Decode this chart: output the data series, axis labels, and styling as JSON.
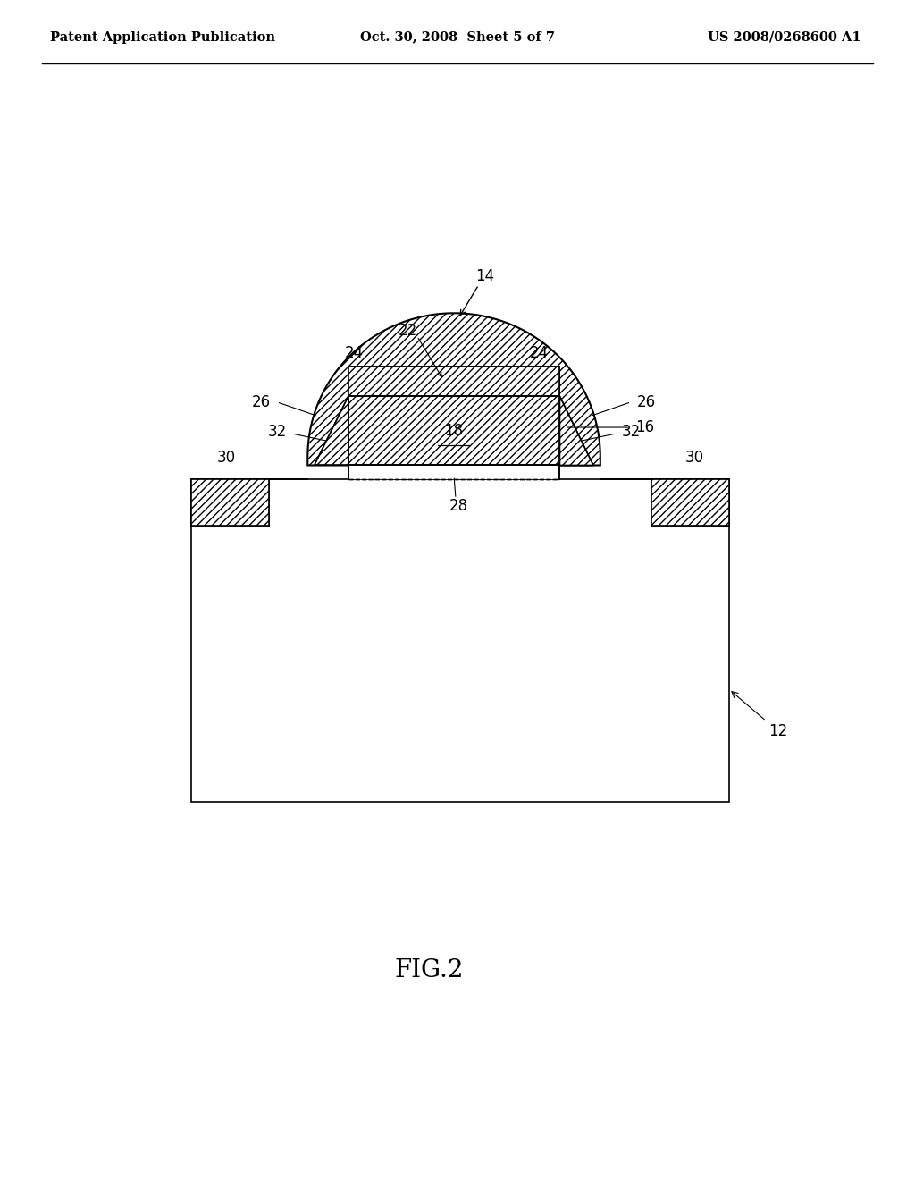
{
  "bg_color": "#ffffff",
  "header_left": "Patent Application Publication",
  "header_mid": "Oct. 30, 2008  Sheet 5 of 7",
  "header_right": "US 2008/0268600 A1",
  "fig_label": "FIG.2",
  "header_fontsize": 10.5,
  "fig_fontsize": 20,
  "label_fontsize": 12,
  "line_color": "#000000"
}
